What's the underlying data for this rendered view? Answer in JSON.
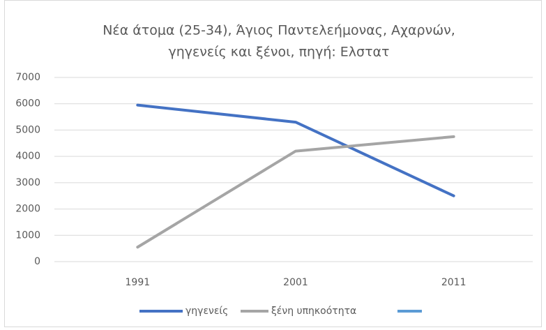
{
  "chart_data": {
    "type": "line",
    "title": [
      "Νέα άτομα (25-34), Άγιος Παντελεήμονας, Αχαρνών,",
      "γηγενείς και ξένοι, πηγή: Ελστατ"
    ],
    "categories": [
      "1991",
      "2001",
      "2011"
    ],
    "series": [
      {
        "name": "γηγενείς",
        "color": "#4472c4",
        "values": [
          5950,
          5300,
          2500
        ]
      },
      {
        "name": "ξένη υπηκοότητα",
        "color": "#a5a5a5",
        "values": [
          550,
          4200,
          4750
        ]
      },
      {
        "color": "#5b9bd5",
        "values": [
          null,
          null,
          null
        ]
      }
    ],
    "ylim": [
      0,
      7000
    ],
    "yticks": [
      0,
      1000,
      2000,
      3000,
      4000,
      5000,
      6000,
      7000
    ],
    "grid": true,
    "legend": "bottom"
  }
}
